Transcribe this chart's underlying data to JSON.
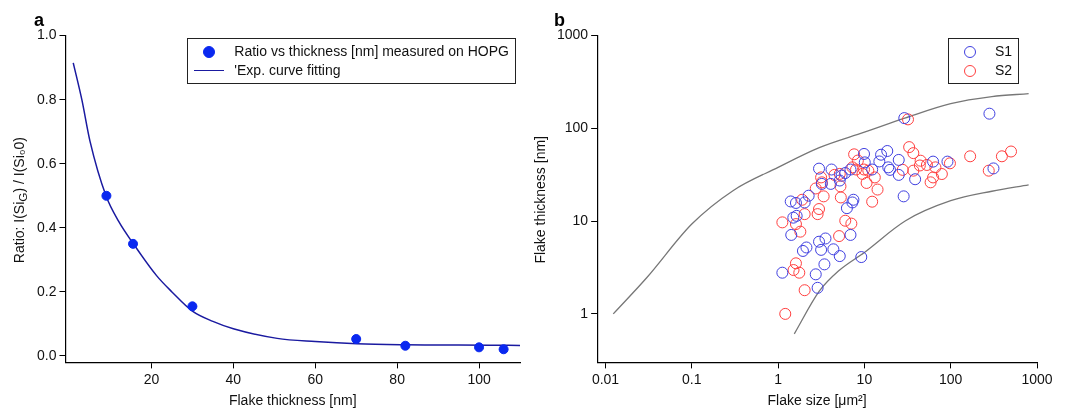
{
  "chart_data": [
    {
      "type": "scatter",
      "title": "a",
      "xlabel": "Flake thickness [nm]",
      "ylabel": "Ratio: I(Si$_{G}$) / I(Si₀0)",
      "xlim": [
        -1,
        110
      ],
      "ylim": [
        -0.02,
        1.0
      ],
      "xticks": [
        20,
        40,
        60,
        80,
        100
      ],
      "yticks": [
        {
          "value": 0,
          "label": "0.0"
        },
        {
          "value": 0.2,
          "label": "0.2"
        },
        {
          "value": 0.4,
          "label": "0.4"
        },
        {
          "value": 0.6,
          "label": "0.6"
        },
        {
          "value": 0.8,
          "label": "0.8"
        },
        {
          "value": 1,
          "label": "1.0"
        }
      ],
      "grid": false,
      "legend": "top right",
      "series": [
        {
          "name": "Ratio vs thickness [nm] measured on HOPG",
          "marker": "circle",
          "color": "#0a28f0",
          "x": [
            9,
            15.5,
            30,
            70,
            82,
            100,
            106
          ],
          "values": [
            0.5,
            0.35,
            0.155,
            0.053,
            0.032,
            0.027,
            0.021
          ]
        },
        {
          "name": "'Exp. curve fitting",
          "type": "line",
          "marker": "none",
          "color": "#1a1aa0",
          "x": [
            0.9,
            3,
            5,
            8.9,
            12,
            15.6,
            21.3,
            25,
            30,
            35,
            40,
            50.7,
            60,
            70.2,
            82,
            95,
            110
          ],
          "values": [
            0.915,
            0.8,
            0.67,
            0.5,
            0.42,
            0.35,
            0.25,
            0.2,
            0.14,
            0.108,
            0.085,
            0.055,
            0.045,
            0.038,
            0.035,
            0.034,
            0.033
          ]
        }
      ]
    },
    {
      "type": "scatter",
      "title": "b",
      "xlabel": "Flake size [μm²]",
      "ylabel": "Flake thickness [nm]",
      "log": "xy",
      "xlim": [
        0.008,
        1000
      ],
      "ylim": [
        0.3,
        1000
      ],
      "xticks": [
        0.01,
        0.1,
        1,
        10,
        100,
        1000
      ],
      "yticks": [
        1,
        10,
        100,
        1000
      ],
      "grid": false,
      "legend": "top right",
      "series": [
        {
          "name": "S1",
          "marker": "circle",
          "color": "#4040e0",
          "x": [
            281,
            29,
            313,
            9.9,
            18.4,
            15.6,
            14.9,
            25,
            10.1,
            18.9,
            19.8,
            12.3,
            25,
            38.7,
            28.5,
            62.5,
            91.7,
            2.98,
            4.16,
            5.44,
            5.18,
            4.08,
            3.21,
            6.0,
            6.9,
            2.26,
            2.03,
            1.4,
            1.61,
            7.46,
            7.26,
            6.27,
            1.5,
            1.64,
            1.42,
            3.54,
            2.98,
            2.13,
            1.94,
            3.15,
            4.37,
            5.18,
            6.9,
            9.2,
            3.44,
            1.12,
            2.73,
            2.87
          ],
          "values": [
            144,
            129,
            37,
            53,
            57,
            52,
            44,
            45.7,
            43,
            38,
            35.7,
            36,
            31.5,
            28.3,
            18.5,
            43.8,
            43.8,
            36.8,
            36,
            30.9,
            27.4,
            25.2,
            25.2,
            33,
            36,
            18.8,
            15.9,
            16.3,
            15.7,
            17,
            15.9,
            13.8,
            10.9,
            11.4,
            7.1,
            6.5,
            6,
            5.2,
            4.77,
            4.9,
            4.97,
            4.2,
            7.1,
            4.1,
            3.42,
            2.78,
            2.67,
            1.91
          ]
        },
        {
          "name": "S2",
          "marker": "circle",
          "color": "#ff4040",
          "x": [
            32,
            33,
            36.9,
            500,
            392,
            168,
            98,
            44.8,
            43.9,
            53,
            66.5,
            79,
            62.5,
            58.5,
            36.9,
            27.8,
            276,
            7.6,
            8.4,
            7.26,
            8,
            9.9,
            11.1,
            9.5,
            13.2,
            10.6,
            14.2,
            12.3,
            5.18,
            4.5,
            3.15,
            3.21,
            2.73,
            5.28,
            3.37,
            5.33,
            1.9,
            2.98,
            2.87,
            2.03,
            1.61,
            1.12,
            1.81,
            6,
            7.06,
            5.09,
            1.61,
            1.51,
            1.76,
            2.03,
            1.21
          ],
          "values": [
            125,
            62.8,
            54.1,
            56.3,
            50,
            50,
            42,
            44.8,
            39.8,
            40.3,
            38,
            32.2,
            29.6,
            26.2,
            35,
            35.7,
            35,
            52.5,
            45,
            38,
            36,
            36,
            35,
            32.3,
            29.6,
            25.8,
            21.9,
            16.2,
            32.3,
            31.5,
            29.6,
            26.2,
            22.5,
            23.7,
            18.5,
            18,
            17,
            13.5,
            11.9,
            11.9,
            9.3,
            9.7,
            7.7,
            10.1,
            9.4,
            6.9,
            3.51,
            2.97,
            2.78,
            1.8,
            1
          ]
        },
        {
          "type": "line",
          "marker": "none",
          "color": "#777777",
          "x": [
            0.0123,
            0.03,
            0.1,
            0.3,
            1,
            3,
            10,
            30,
            100,
            300,
            800
          ],
          "values": [
            1,
            2.45,
            9.3,
            21.3,
            38,
            62,
            91,
            130,
            185,
            220,
            237
          ]
        },
        {
          "type": "line",
          "marker": "none",
          "color": "#777777",
          "x": [
            1.54,
            3,
            5,
            10,
            30,
            100,
            300,
            800
          ],
          "values": [
            0.61,
            1.76,
            2.9,
            4.6,
            10.1,
            16.6,
            21,
            24.6
          ]
        }
      ]
    }
  ]
}
